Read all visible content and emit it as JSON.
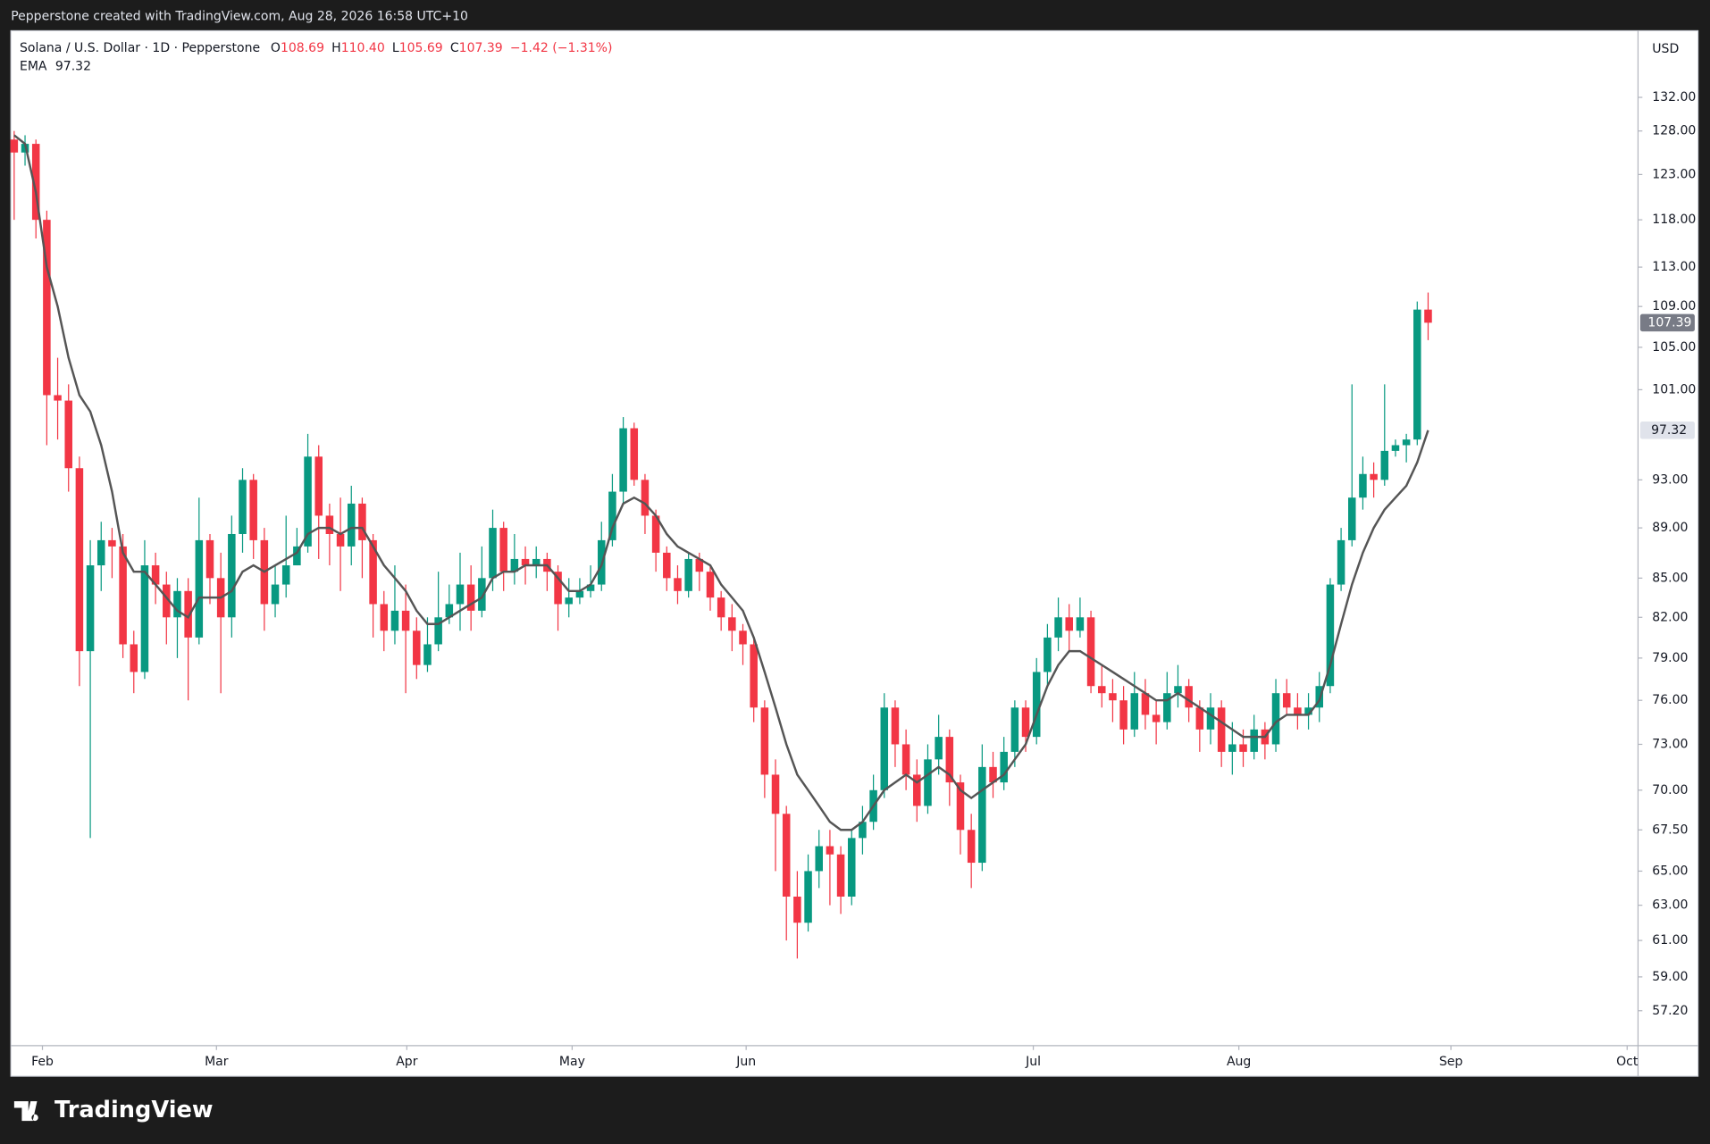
{
  "top_bar": "Pepperstone created with TradingView.com, Aug 28, 2026 16:58 UTC+10",
  "brand": "TradingView",
  "chart_data": {
    "type": "candlestick",
    "currency": "USD",
    "ohlc_legend": [
      {
        "label": "O",
        "value": "108.69"
      },
      {
        "label": "H",
        "value": "110.40"
      },
      {
        "label": "L",
        "value": "105.69"
      },
      {
        "label": "C",
        "value": "107.39"
      }
    ],
    "change": "−1.42 (−1.31%)",
    "ema_legend_value": "97.32",
    "last_price_label": "107.39",
    "ema_price_label": "97.32",
    "log_scale": true,
    "grid": false,
    "xlim": [
      -0.3,
      149.3
    ],
    "xticks": [
      {
        "value": 2.6,
        "label": "Feb"
      },
      {
        "value": 18.6,
        "label": "Mar"
      },
      {
        "value": 36.1,
        "label": "Apr"
      },
      {
        "value": 51.3,
        "label": "May"
      },
      {
        "value": 67.3,
        "label": "Jun"
      },
      {
        "value": 93.7,
        "label": "Jul"
      },
      {
        "value": 112.6,
        "label": "Aug"
      },
      {
        "value": 132.1,
        "label": "Sep"
      },
      {
        "value": 148.3,
        "label": "Oct"
      }
    ],
    "ylim": [
      55.4,
      140.3
    ],
    "yticks": [
      {
        "value": 57.2,
        "label": "57.20"
      },
      {
        "value": 59,
        "label": "59.00"
      },
      {
        "value": 61,
        "label": "61.00"
      },
      {
        "value": 63,
        "label": "63.00"
      },
      {
        "value": 65,
        "label": "65.00"
      },
      {
        "value": 67.5,
        "label": "67.50"
      },
      {
        "value": 70,
        "label": "70.00"
      },
      {
        "value": 73,
        "label": "73.00"
      },
      {
        "value": 76,
        "label": "76.00"
      },
      {
        "value": 79,
        "label": "79.00"
      },
      {
        "value": 82,
        "label": "82.00"
      },
      {
        "value": 85,
        "label": "85.00"
      },
      {
        "value": 89,
        "label": "89.00"
      },
      {
        "value": 93,
        "label": "93.00"
      },
      {
        "value": 101,
        "label": "101.00"
      },
      {
        "value": 105,
        "label": "105.00"
      },
      {
        "value": 109,
        "label": "109.00"
      },
      {
        "value": 113,
        "label": "113.00"
      },
      {
        "value": 118,
        "label": "118.00"
      },
      {
        "value": 123,
        "label": "123.00"
      },
      {
        "value": 128,
        "label": "128.00"
      },
      {
        "value": 132,
        "label": "132.00"
      }
    ],
    "series": [
      {
        "name": "Solana / U.S. Dollar · 1D · Pepperstone",
        "up_color": "#089981",
        "down_color": "#f23645",
        "open": [
          127,
          125.5,
          126.5,
          118,
          100.5,
          100,
          94,
          79.5,
          86,
          88,
          87.5,
          80,
          78,
          86,
          84.5,
          82,
          84,
          80.5,
          88,
          85,
          82,
          88.5,
          93,
          88,
          83,
          84.5,
          86,
          87.5,
          95,
          90,
          88.5,
          87.5,
          91,
          88,
          83,
          81,
          82.5,
          81,
          78.5,
          80,
          82,
          83,
          84.5,
          82.5,
          85,
          89,
          85.5,
          86.5,
          86,
          86.5,
          85.5,
          83,
          83.5,
          84,
          84.5,
          88,
          92,
          97.5,
          93,
          90,
          87,
          85,
          84,
          86.5,
          85.5,
          83.5,
          82,
          81,
          80,
          75.5,
          71,
          68.5,
          63.5,
          62,
          65,
          66.5,
          66,
          63.5,
          67,
          68,
          70,
          75.5,
          73,
          71,
          69,
          72,
          73.5,
          70.5,
          67.5,
          65.5,
          71.5,
          70.5,
          72.5,
          75.5,
          73.5,
          78,
          80.5,
          82,
          81,
          82,
          77,
          76.5,
          76,
          74,
          76.5,
          75,
          74.5,
          76.5,
          77,
          75.5,
          74,
          75.5,
          72.5,
          73,
          72.5,
          74,
          73,
          76.5,
          75.5,
          75,
          75.5,
          77,
          84.5,
          88,
          91.5,
          93.5,
          93,
          95.5,
          96,
          96.5,
          108.69
        ],
        "high": [
          128,
          127.5,
          127,
          119,
          104,
          101.5,
          95,
          88,
          89.5,
          89,
          88.5,
          81,
          88,
          87,
          85.5,
          85,
          85,
          91.5,
          88.5,
          87,
          90,
          94,
          93.5,
          89,
          86,
          90,
          89,
          97,
          96,
          91,
          91.5,
          92.5,
          91.5,
          88.5,
          84,
          86,
          84.5,
          82,
          82,
          85.5,
          84.5,
          87,
          86,
          87.5,
          90.5,
          89.5,
          88.5,
          87.5,
          87.5,
          87,
          86,
          85,
          85,
          86,
          89.5,
          93.5,
          98.5,
          98,
          93.5,
          90.5,
          87.5,
          86,
          87,
          87,
          86,
          84,
          83,
          81.5,
          80.5,
          76,
          72,
          69,
          65,
          66,
          67.5,
          67.5,
          66.5,
          67.5,
          69,
          71,
          76.5,
          76,
          74,
          72,
          73,
          75,
          74,
          71,
          68.5,
          73,
          72.5,
          73.5,
          76,
          76,
          79,
          81.5,
          83.5,
          83,
          83.5,
          82.5,
          78.5,
          77.5,
          77,
          78,
          77.5,
          76,
          78,
          78.5,
          77.5,
          76,
          76.5,
          76,
          74.5,
          74,
          75,
          74.5,
          77.5,
          77.5,
          76.5,
          76.5,
          78,
          85,
          89,
          101.5,
          95,
          94.5,
          101.5,
          96.5,
          97,
          109.5,
          110.4
        ],
        "low": [
          118,
          124,
          116,
          96,
          96.5,
          92,
          77,
          67,
          84,
          85,
          79,
          76.5,
          77.5,
          83,
          80,
          79,
          76,
          80,
          83,
          76.5,
          80.5,
          87,
          86.5,
          81,
          82,
          83.5,
          86,
          87,
          86.5,
          86,
          84,
          86,
          85,
          80.5,
          79.5,
          80,
          76.5,
          77.5,
          78,
          79.5,
          81.5,
          81,
          81,
          82,
          84,
          84,
          84.5,
          84.5,
          85,
          84,
          81,
          82,
          83,
          83.5,
          84,
          87.5,
          91,
          92.5,
          88.5,
          85.5,
          84,
          83,
          83.5,
          84,
          82.5,
          81,
          79.5,
          78.5,
          74.5,
          69.5,
          65,
          61,
          60,
          61.5,
          64,
          63,
          62.5,
          63,
          66,
          67.5,
          69.5,
          71.5,
          70,
          68,
          68.5,
          71,
          69,
          66,
          64,
          65,
          69.5,
          70,
          71.5,
          72.5,
          73,
          77,
          79.5,
          79.5,
          80.5,
          76.5,
          75.5,
          74.5,
          73,
          73.5,
          74,
          73,
          74,
          75.5,
          74.5,
          72.5,
          73,
          71.5,
          71,
          71.5,
          72,
          72,
          72.5,
          75,
          74,
          74,
          74.5,
          76.5,
          84,
          87.5,
          90.5,
          91.5,
          92.5,
          95,
          94.5,
          96,
          105.69
        ],
        "close": [
          125.5,
          126.5,
          118,
          100.5,
          100,
          94,
          79.5,
          86,
          88,
          87.5,
          80,
          78,
          86,
          84.5,
          82,
          84,
          80.5,
          88,
          85,
          82,
          88.5,
          93,
          88,
          83,
          84.5,
          86,
          87.5,
          95,
          90,
          88.5,
          87.5,
          91,
          88,
          83,
          81,
          82.5,
          81,
          78.5,
          80,
          82,
          83,
          84.5,
          82.5,
          85,
          89,
          85.5,
          86.5,
          86,
          86.5,
          85.5,
          83,
          83.5,
          84,
          84.5,
          88,
          92,
          97.5,
          93,
          90,
          87,
          85,
          84,
          86.5,
          85.5,
          83.5,
          82,
          81,
          80,
          75.5,
          71,
          68.5,
          63.5,
          62,
          65,
          66.5,
          66,
          63.5,
          67,
          68,
          70,
          75.5,
          73,
          71,
          69,
          72,
          73.5,
          70.5,
          67.5,
          65.5,
          71.5,
          70.5,
          72.5,
          75.5,
          73.5,
          78,
          80.5,
          82,
          81,
          82,
          77,
          76.5,
          76,
          74,
          76.5,
          75,
          74.5,
          76.5,
          77,
          75.5,
          74,
          75.5,
          72.5,
          73,
          72.5,
          74,
          73,
          76.5,
          75.5,
          75,
          75.5,
          77,
          84.5,
          88,
          91.5,
          93.5,
          93,
          95.5,
          96,
          96.5,
          108.69,
          107.39
        ]
      },
      {
        "name": "EMA",
        "color": "#555555",
        "values": [
          127.5,
          126.5,
          121,
          113,
          109,
          104,
          100.5,
          99,
          96,
          92,
          87,
          85.5,
          85.5,
          84.5,
          83.5,
          82.5,
          82,
          83.5,
          83.5,
          83.5,
          84,
          85.5,
          86,
          85.5,
          86,
          86.5,
          87,
          88.5,
          89,
          89,
          88.5,
          89,
          89,
          87.5,
          86,
          85,
          84,
          82.5,
          81.5,
          81.5,
          82,
          82.5,
          83,
          83.5,
          85,
          85.5,
          85.5,
          86,
          86,
          86,
          85,
          84,
          84,
          84.5,
          86,
          89,
          91,
          91.5,
          91,
          90,
          88.5,
          87.5,
          87,
          86.5,
          86,
          84.5,
          83.5,
          82.5,
          80.5,
          78,
          75.5,
          73,
          71,
          70,
          69,
          68,
          67.5,
          67.5,
          68,
          69,
          70,
          70.5,
          71,
          70.5,
          71,
          71.5,
          71,
          70,
          69.5,
          70,
          70.5,
          71,
          72,
          73,
          75,
          77,
          78.5,
          79.5,
          79.5,
          79,
          78.5,
          78,
          77.5,
          77,
          76.5,
          76,
          76,
          76.5,
          76,
          75.5,
          75,
          74.5,
          74,
          73.5,
          73.5,
          73.5,
          74.5,
          75,
          75,
          75,
          76,
          78.5,
          81.5,
          84.5,
          87,
          89,
          90.5,
          91.5,
          92.5,
          94.5,
          97.32
        ]
      }
    ]
  }
}
